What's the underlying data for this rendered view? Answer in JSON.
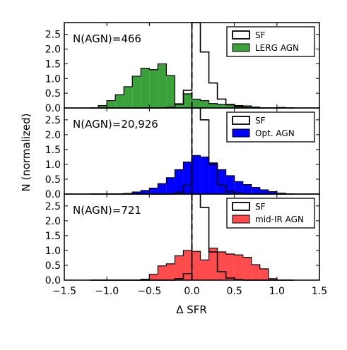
{
  "chart_data": {
    "xlabel": "Δ SFR",
    "ylabel": "N (normalized)",
    "xlim": [
      -1.5,
      1.5
    ],
    "xticks": [
      "−1.5",
      "−1.0",
      "−0.5",
      "0.0",
      "0.5",
      "1.0",
      "1.5"
    ],
    "xtick_values": [
      -1.5,
      -1.0,
      -0.5,
      0.0,
      0.5,
      1.0,
      1.5
    ],
    "bin_edges": [
      -1.2,
      -1.1,
      -1.0,
      -0.9,
      -0.8,
      -0.7,
      -0.6,
      -0.5,
      -0.4,
      -0.3,
      -0.2,
      -0.1,
      0.0,
      0.1,
      0.2,
      0.3,
      0.4,
      0.5,
      0.6,
      0.7,
      0.8,
      0.9,
      1.0,
      1.1,
      1.2
    ],
    "panels": [
      {
        "type": "histogram",
        "annotation": "N(AGN)=466",
        "ylim": [
          0,
          2.9
        ],
        "yticks": [
          "0.0",
          "0.5",
          "1.0",
          "1.5",
          "2.0",
          "2.5"
        ],
        "ytick_values": [
          0.0,
          0.5,
          1.0,
          1.5,
          2.0,
          2.5
        ],
        "vline_x": 0.0,
        "legend_position": "top-right",
        "series": [
          {
            "name": "SF",
            "style": "step",
            "color": "#000000",
            "values": [
              0,
              0,
              0,
              0,
              0,
              0,
              0,
              0,
              0,
              0.02,
              0.14,
              0.6,
              2.9,
              1.9,
              0.85,
              0.3,
              0.12,
              0.05,
              0.02,
              0,
              0,
              0,
              0,
              0
            ]
          },
          {
            "name": "LERG AGN",
            "style": "filled",
            "color": "#3ba23b",
            "values": [
              0,
              0.08,
              0.25,
              0.45,
              0.72,
              1.08,
              1.35,
              1.3,
              1.5,
              1.1,
              0.12,
              0.48,
              0.3,
              0.25,
              0.15,
              0.12,
              0.1,
              0.08,
              0.07,
              0.03,
              0,
              0,
              0.02,
              0
            ]
          }
        ]
      },
      {
        "type": "histogram",
        "annotation": "N(AGN)=20,926",
        "ylim": [
          0,
          2.9
        ],
        "yticks": [
          "0.0",
          "0.5",
          "1.0",
          "1.5",
          "2.0",
          "2.5"
        ],
        "ytick_values": [
          0.0,
          0.5,
          1.0,
          1.5,
          2.0,
          2.5
        ],
        "vline_x": 0.0,
        "legend_position": "top-right",
        "series": [
          {
            "name": "SF",
            "style": "step",
            "color": "#000000",
            "values": [
              0,
              0,
              0,
              0,
              0,
              0,
              0,
              0,
              0,
              0,
              0.06,
              0.3,
              2.9,
              2.5,
              1.0,
              0.3,
              0.08,
              0.02,
              0,
              0,
              0,
              0,
              0,
              0
            ]
          },
          {
            "name": "Opt. AGN",
            "style": "filled",
            "color": "#0000ff",
            "values": [
              0,
              0,
              0,
              0,
              0.02,
              0.07,
              0.12,
              0.2,
              0.35,
              0.55,
              0.82,
              1.08,
              1.3,
              1.25,
              1.05,
              0.82,
              0.62,
              0.42,
              0.32,
              0.22,
              0.14,
              0.08,
              0.03,
              0
            ]
          }
        ]
      },
      {
        "type": "histogram",
        "annotation": "N(AGN)=721",
        "ylim": [
          0,
          2.9
        ],
        "yticks": [
          "0.0",
          "0.5",
          "1.0",
          "1.5",
          "2.0",
          "2.5"
        ],
        "ytick_values": [
          0.0,
          0.5,
          1.0,
          1.5,
          2.0,
          2.5
        ],
        "vline_x": 0.0,
        "legend_position": "top-right",
        "series": [
          {
            "name": "SF",
            "style": "step",
            "color": "#000000",
            "values": [
              0,
              0,
              0,
              0,
              0,
              0,
              0,
              0,
              0,
              0,
              0.05,
              0.22,
              2.9,
              2.45,
              0.95,
              0.28,
              0.07,
              0.02,
              0,
              0,
              0,
              0,
              0,
              0
            ]
          },
          {
            "name": "mid-IR AGN",
            "style": "filled",
            "color": "#ff4b4b",
            "values": [
              0,
              0,
              0,
              0,
              0,
              0,
              0.03,
              0.2,
              0.48,
              0.55,
              0.82,
              1.0,
              0.97,
              0.68,
              1.08,
              0.95,
              0.88,
              0.85,
              0.77,
              0.52,
              0.38,
              0.05,
              0,
              0
            ]
          }
        ]
      }
    ]
  }
}
